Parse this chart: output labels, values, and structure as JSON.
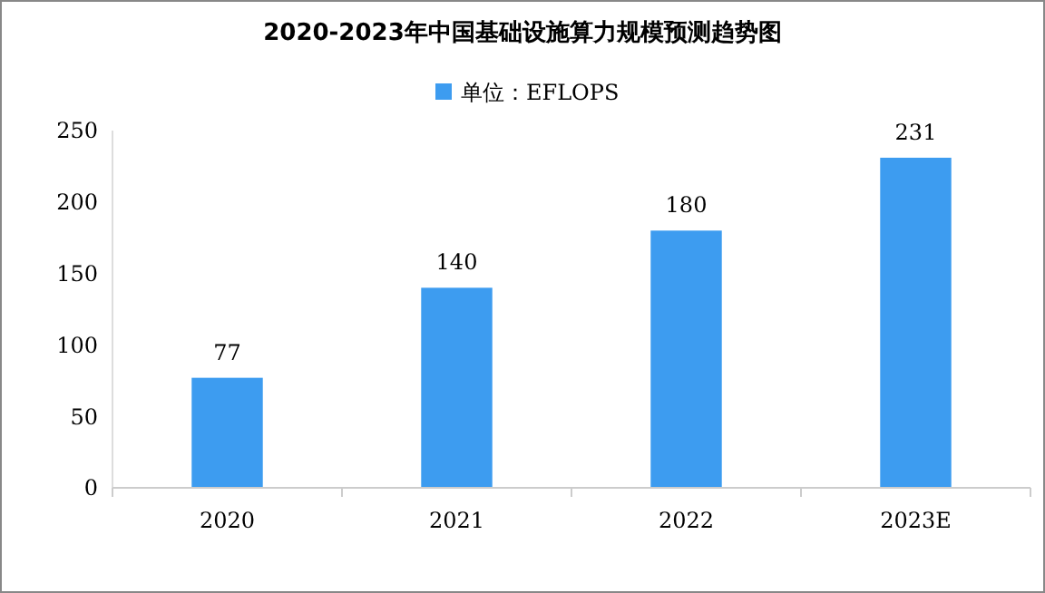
{
  "chart_data": {
    "type": "bar",
    "title": "2020-2023年中国基础设施算力规模预测趋势图",
    "categories": [
      "2020",
      "2021",
      "2022",
      "2023E"
    ],
    "series": [
      {
        "name": "单位：EFLOPS",
        "color": "#3d9cf0",
        "values": [
          77,
          140,
          180,
          231
        ]
      }
    ],
    "ylim": [
      0,
      250
    ],
    "yticks": [
      0,
      50,
      100,
      150,
      200,
      250
    ],
    "grid": false,
    "legend": "top",
    "data_labels": true
  }
}
